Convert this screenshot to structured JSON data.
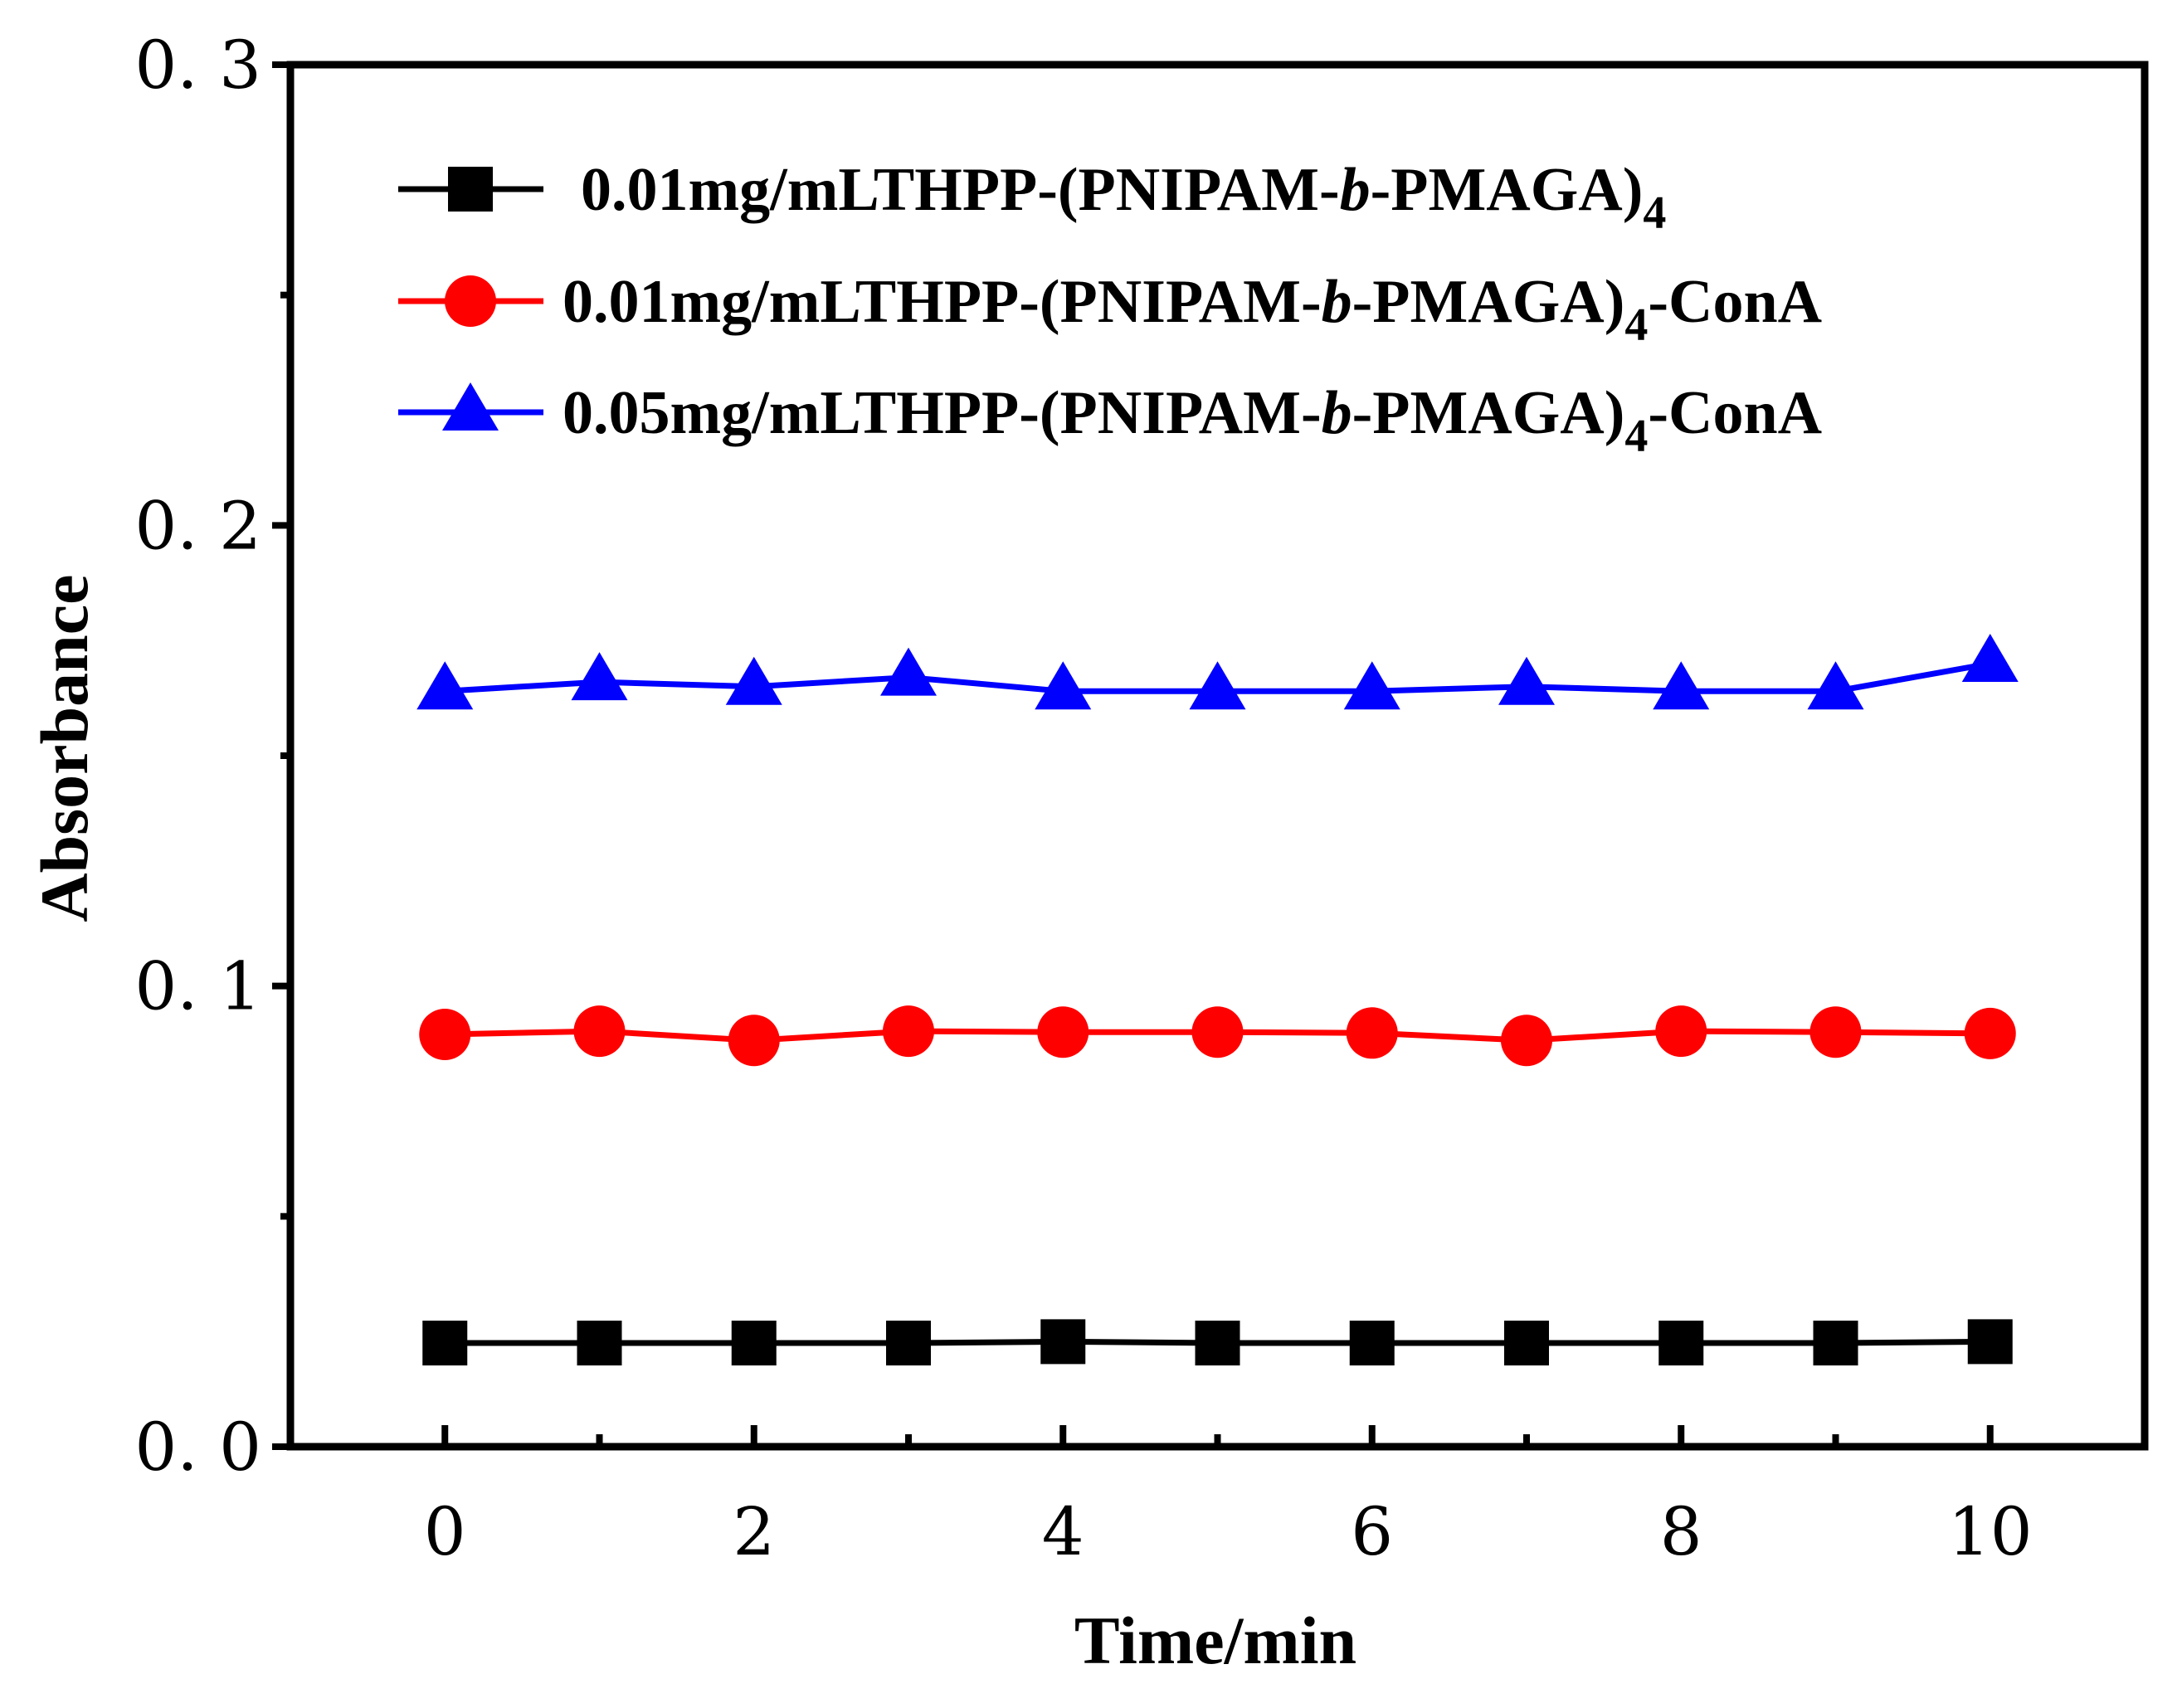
{
  "chart_data": {
    "type": "line",
    "xlabel": "Time/min",
    "ylabel": "Absorbance",
    "xlim": [
      -1,
      11
    ],
    "ylim": [
      0.0,
      0.3
    ],
    "x_ticks": [
      0,
      2,
      4,
      6,
      8,
      10
    ],
    "x_tick_labels": [
      "0",
      "2",
      "4",
      "6",
      "8",
      "10"
    ],
    "x_minor_ticks": [
      1,
      3,
      5,
      7,
      9
    ],
    "y_ticks": [
      0.0,
      0.1,
      0.2,
      0.3
    ],
    "y_tick_labels": [
      "0. 0",
      "0. 1",
      "0. 2",
      "0. 3"
    ],
    "y_minor_ticks": [
      0.05,
      0.15,
      0.25
    ],
    "x": [
      0,
      1,
      2,
      3,
      4,
      5,
      6,
      7,
      8,
      9,
      10
    ],
    "legend_position": "top-left",
    "series": [
      {
        "name": "0.01mg/mLTHPP-(PNIPAM-b-PMAGA)4",
        "legend": {
          "pre": "0.01mg/mLTHPP-(PNIPAM-",
          "italic": "b",
          "post": "-PMAGA)",
          "sub": "4",
          "suffix": ""
        },
        "color": "#000000",
        "marker": "square",
        "values": [
          0.0225,
          0.0225,
          0.0225,
          0.0225,
          0.0228,
          0.0225,
          0.0225,
          0.0225,
          0.0225,
          0.0225,
          0.0228
        ]
      },
      {
        "name": "0.01mg/mLTHPP-(PNIPAM-b-PMAGA)4-ConA",
        "legend": {
          "pre": "0.01mg/mLTHPP-(PNIPAM-",
          "italic": "b",
          "post": "-PMAGA)",
          "sub": "4",
          "suffix": "-ConA"
        },
        "color": "#ff0000",
        "marker": "circle",
        "values": [
          0.0895,
          0.0902,
          0.0882,
          0.0902,
          0.09,
          0.09,
          0.0898,
          0.0882,
          0.0902,
          0.09,
          0.0897
        ]
      },
      {
        "name": "0.05mg/mLTHPP-(PNIPAM-b-PMAGA)4-ConA",
        "legend": {
          "pre": "0.05mg/mLTHPP-(PNIPAM-",
          "italic": "b",
          "post": "-PMAGA)",
          "sub": "4",
          "suffix": "-ConA"
        },
        "color": "#0000ff",
        "marker": "triangle",
        "values": [
          0.164,
          0.166,
          0.165,
          0.167,
          0.164,
          0.164,
          0.164,
          0.165,
          0.164,
          0.164,
          0.17
        ]
      }
    ]
  }
}
